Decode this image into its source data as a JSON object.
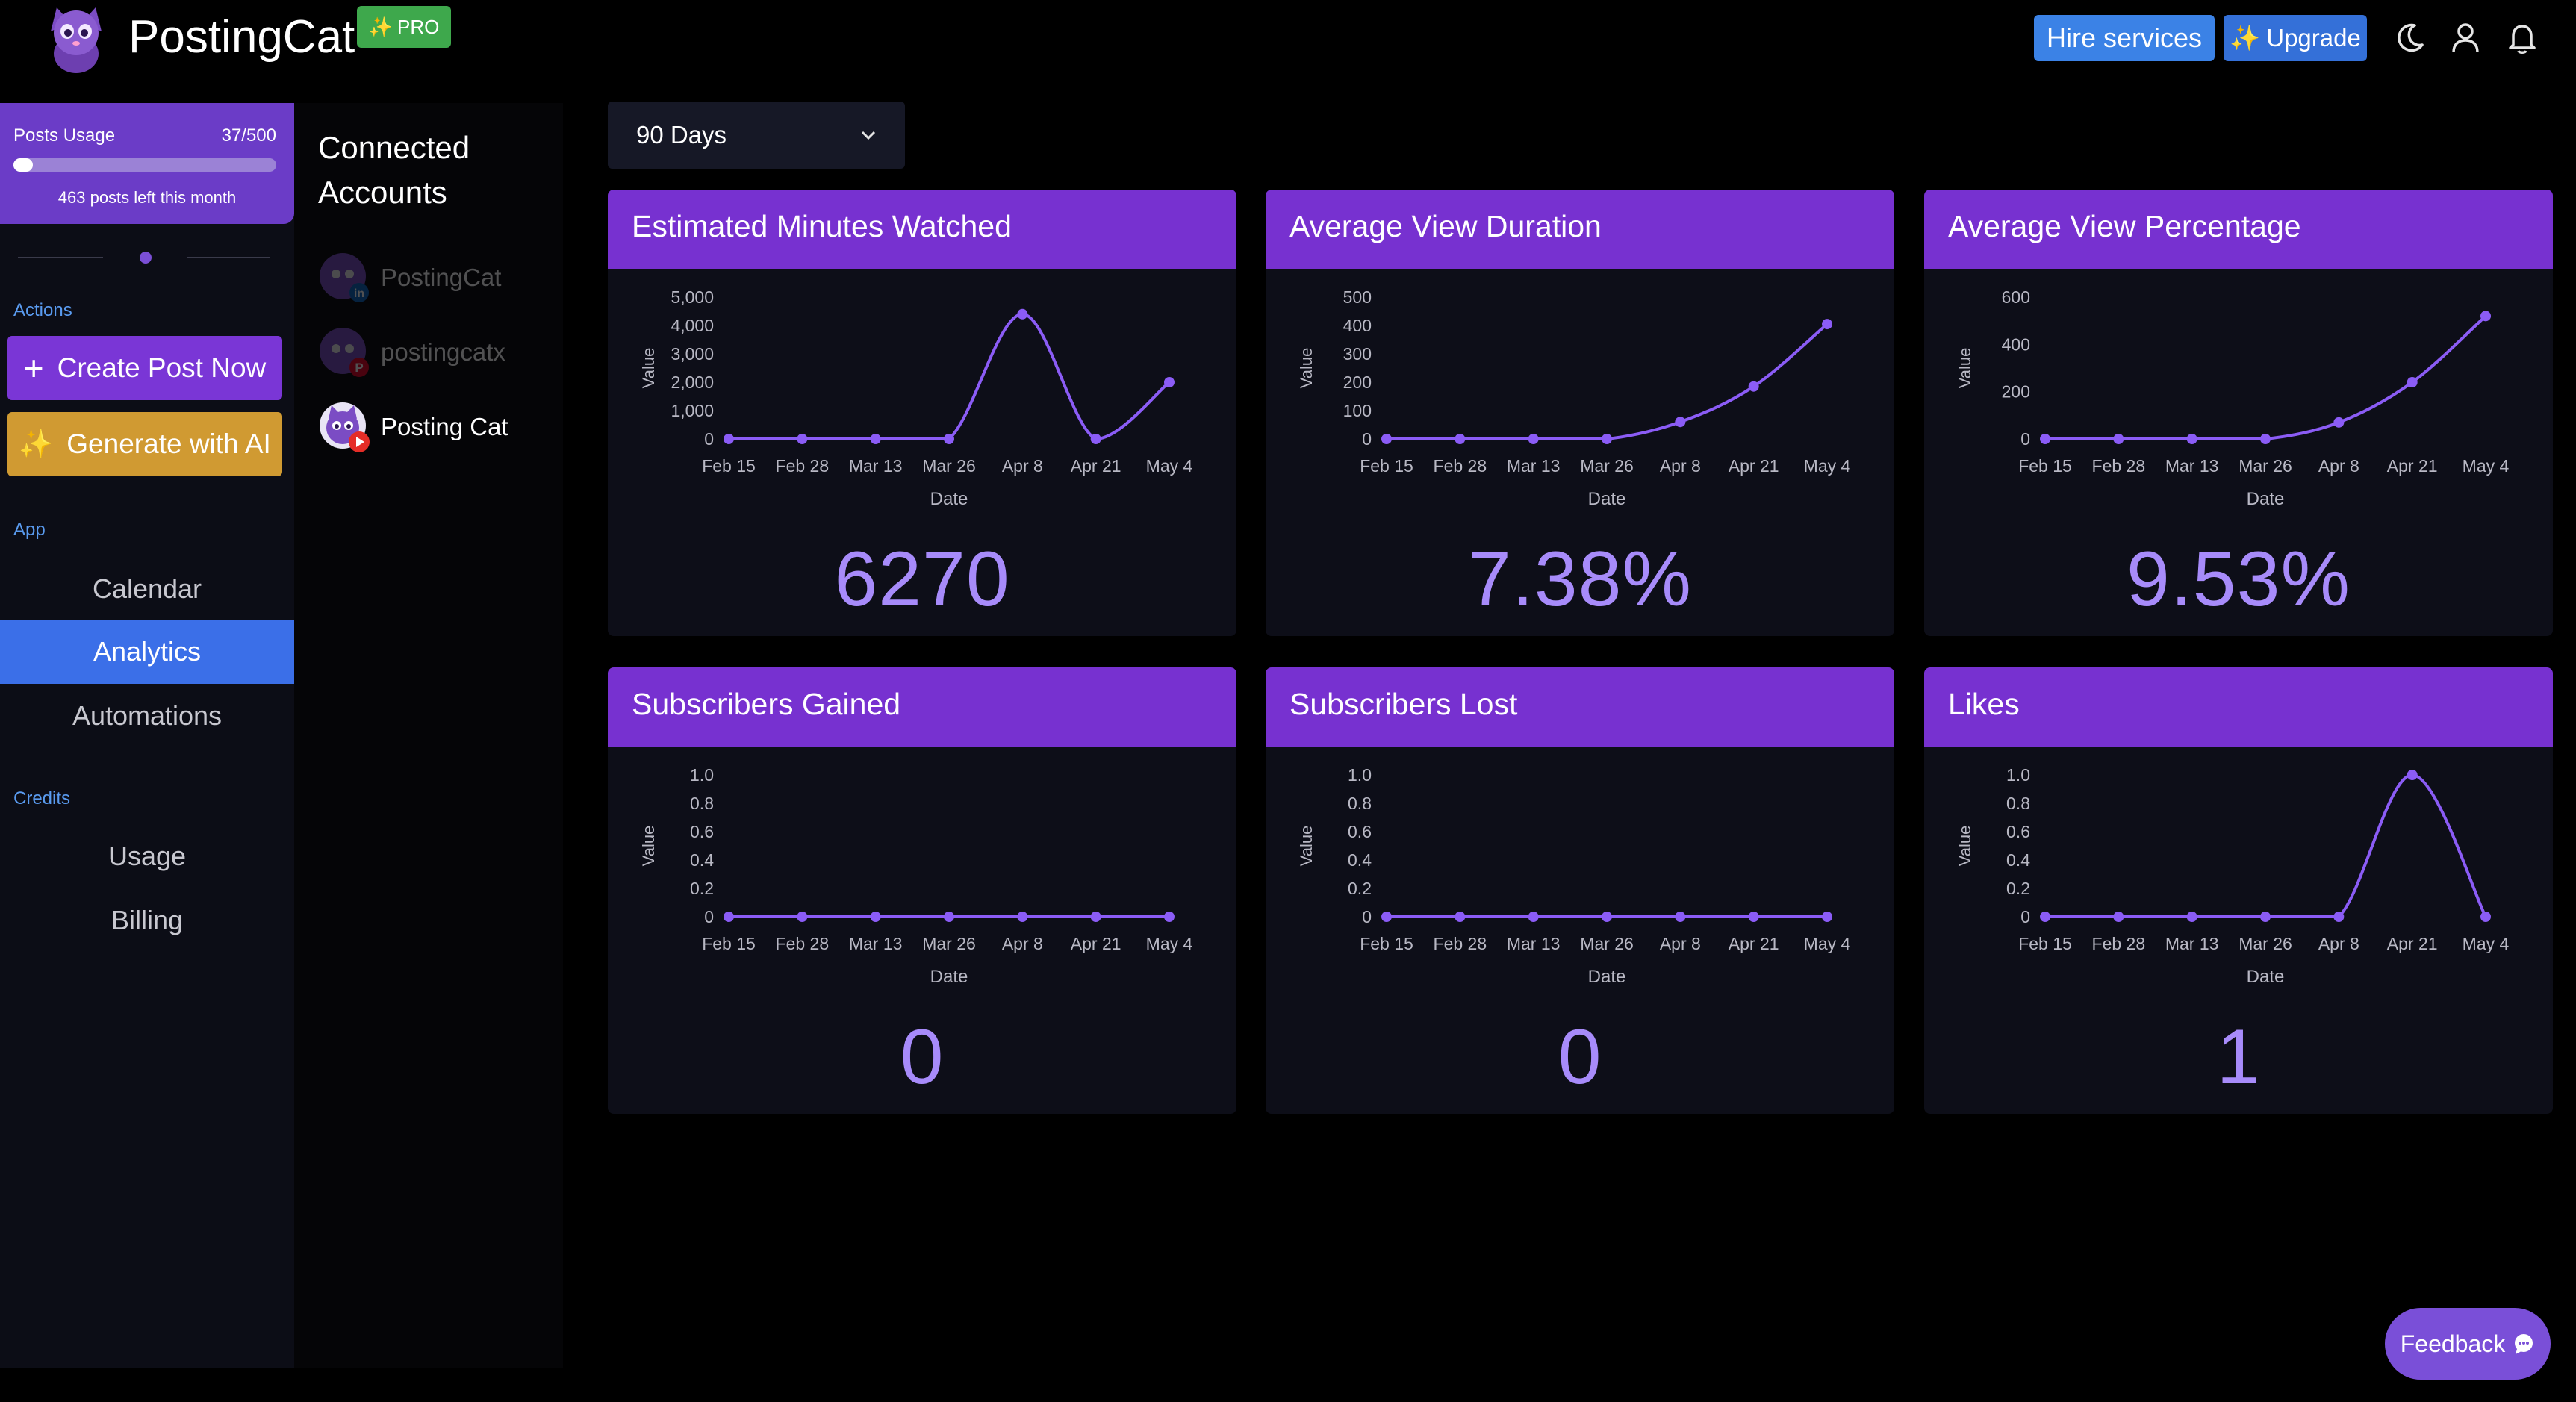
{
  "app": {
    "title": "PostingCat",
    "pro_badge": "PRO",
    "hire_label": "Hire services",
    "upgrade_label": "Upgrade"
  },
  "sidebar": {
    "usage": {
      "label": "Posts Usage",
      "count": "37/500",
      "used": 37,
      "limit": 500,
      "left_text": "463 posts left this month"
    },
    "actions_label": "Actions",
    "create_label": "Create Post Now",
    "generate_label": "Generate with AI",
    "app_label": "App",
    "nav": [
      "Calendar",
      "Analytics",
      "Automations"
    ],
    "active_nav": "Analytics",
    "credits_label": "Credits",
    "credits_nav": [
      "Usage",
      "Billing"
    ]
  },
  "accounts": {
    "title_line1": "Connected",
    "title_line2": "Accounts",
    "items": [
      {
        "name": "PostingCat",
        "platform": "linkedin",
        "enabled": false
      },
      {
        "name": "postingcatx",
        "platform": "pinterest",
        "enabled": false
      },
      {
        "name": "Posting Cat",
        "platform": "youtube",
        "enabled": true
      }
    ]
  },
  "filter": {
    "range_label": "90 Days"
  },
  "feedback_label": "Feedback",
  "colors": {
    "accent": "#7731d0",
    "line": "#8b5cf6",
    "value_text": "#a78bfa",
    "active_nav": "#3b6fe8"
  },
  "chart_data": [
    {
      "type": "line",
      "title": "Estimated Minutes Watched",
      "xlabel": "Date",
      "ylabel": "Value",
      "categories": [
        "Feb 15",
        "Feb 28",
        "Mar 13",
        "Mar 26",
        "Apr 8",
        "Apr 21",
        "May 4"
      ],
      "values": [
        0,
        0,
        0,
        0,
        4400,
        0,
        2000
      ],
      "ylim": [
        0,
        5000
      ],
      "yticks": [
        0,
        1000,
        2000,
        3000,
        4000,
        5000
      ],
      "ytick_labels": [
        "0",
        "1,000",
        "2,000",
        "3,000",
        "4,000",
        "5,000"
      ],
      "total": "6270"
    },
    {
      "type": "line",
      "title": "Average View Duration",
      "xlabel": "Date",
      "ylabel": "Value",
      "categories": [
        "Feb 15",
        "Feb 28",
        "Mar 13",
        "Mar 26",
        "Apr 8",
        "Apr 21",
        "May 4"
      ],
      "values": [
        0,
        0,
        0,
        0,
        60,
        185,
        405
      ],
      "ylim": [
        0,
        500
      ],
      "yticks": [
        0,
        100,
        200,
        300,
        400,
        500
      ],
      "ytick_labels": [
        "0",
        "100",
        "200",
        "300",
        "400",
        "500"
      ],
      "total": "7.38%"
    },
    {
      "type": "line",
      "title": "Average View Percentage",
      "xlabel": "Date",
      "ylabel": "Value",
      "categories": [
        "Feb 15",
        "Feb 28",
        "Mar 13",
        "Mar 26",
        "Apr 8",
        "Apr 21",
        "May 4"
      ],
      "values": [
        0,
        0,
        0,
        0,
        70,
        240,
        520
      ],
      "ylim": [
        0,
        600
      ],
      "yticks": [
        0,
        200,
        400,
        600
      ],
      "ytick_labels": [
        "0",
        "200",
        "400",
        "600"
      ],
      "total": "9.53%"
    },
    {
      "type": "line",
      "title": "Subscribers Gained",
      "xlabel": "Date",
      "ylabel": "Value",
      "categories": [
        "Feb 15",
        "Feb 28",
        "Mar 13",
        "Mar 26",
        "Apr 8",
        "Apr 21",
        "May 4"
      ],
      "values": [
        0,
        0,
        0,
        0,
        0,
        0,
        0
      ],
      "ylim": [
        0,
        1
      ],
      "yticks": [
        0,
        0.2,
        0.4,
        0.6,
        0.8,
        1.0
      ],
      "ytick_labels": [
        "0",
        "0.2",
        "0.4",
        "0.6",
        "0.8",
        "1.0"
      ],
      "total": "0"
    },
    {
      "type": "line",
      "title": "Subscribers Lost",
      "xlabel": "Date",
      "ylabel": "Value",
      "categories": [
        "Feb 15",
        "Feb 28",
        "Mar 13",
        "Mar 26",
        "Apr 8",
        "Apr 21",
        "May 4"
      ],
      "values": [
        0,
        0,
        0,
        0,
        0,
        0,
        0
      ],
      "ylim": [
        0,
        1
      ],
      "yticks": [
        0,
        0.2,
        0.4,
        0.6,
        0.8,
        1.0
      ],
      "ytick_labels": [
        "0",
        "0.2",
        "0.4",
        "0.6",
        "0.8",
        "1.0"
      ],
      "total": "0"
    },
    {
      "type": "line",
      "title": "Likes",
      "xlabel": "Date",
      "ylabel": "Value",
      "categories": [
        "Feb 15",
        "Feb 28",
        "Mar 13",
        "Mar 26",
        "Apr 8",
        "Apr 21",
        "May 4"
      ],
      "values": [
        0,
        0,
        0,
        0,
        0,
        1,
        0
      ],
      "ylim": [
        0,
        1
      ],
      "yticks": [
        0,
        0.2,
        0.4,
        0.6,
        0.8,
        1.0
      ],
      "ytick_labels": [
        "0",
        "0.2",
        "0.4",
        "0.6",
        "0.8",
        "1.0"
      ],
      "total": "1"
    }
  ]
}
